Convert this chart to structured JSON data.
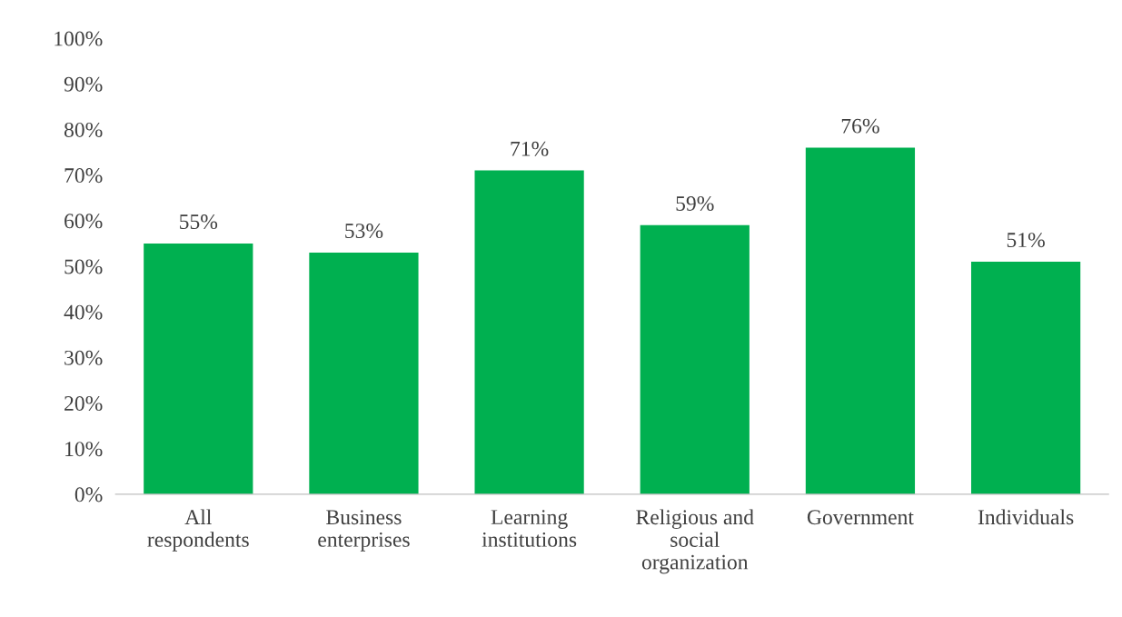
{
  "chart_data": {
    "type": "bar",
    "categories": [
      "All\nrespondents",
      "Business\nenterprises",
      "Learning\ninstitutions",
      "Religious and\nsocial\norganization",
      "Government",
      "Individuals"
    ],
    "values": [
      55,
      53,
      71,
      59,
      76,
      51
    ],
    "value_labels": [
      "55%",
      "53%",
      "71%",
      "59%",
      "76%",
      "51%"
    ],
    "color": "#00b050",
    "ylim": [
      0,
      100
    ],
    "yticks": [
      {
        "value": 0,
        "label": "0%"
      },
      {
        "value": 10,
        "label": "10%"
      },
      {
        "value": 20,
        "label": "20%"
      },
      {
        "value": 30,
        "label": "30%"
      },
      {
        "value": 40,
        "label": "40%"
      },
      {
        "value": 50,
        "label": "50%"
      },
      {
        "value": 60,
        "label": "60%"
      },
      {
        "value": 70,
        "label": "70%"
      },
      {
        "value": 80,
        "label": "80%"
      },
      {
        "value": 90,
        "label": "90%"
      },
      {
        "value": 100,
        "label": "100%"
      }
    ],
    "grid": false,
    "legend": false
  }
}
